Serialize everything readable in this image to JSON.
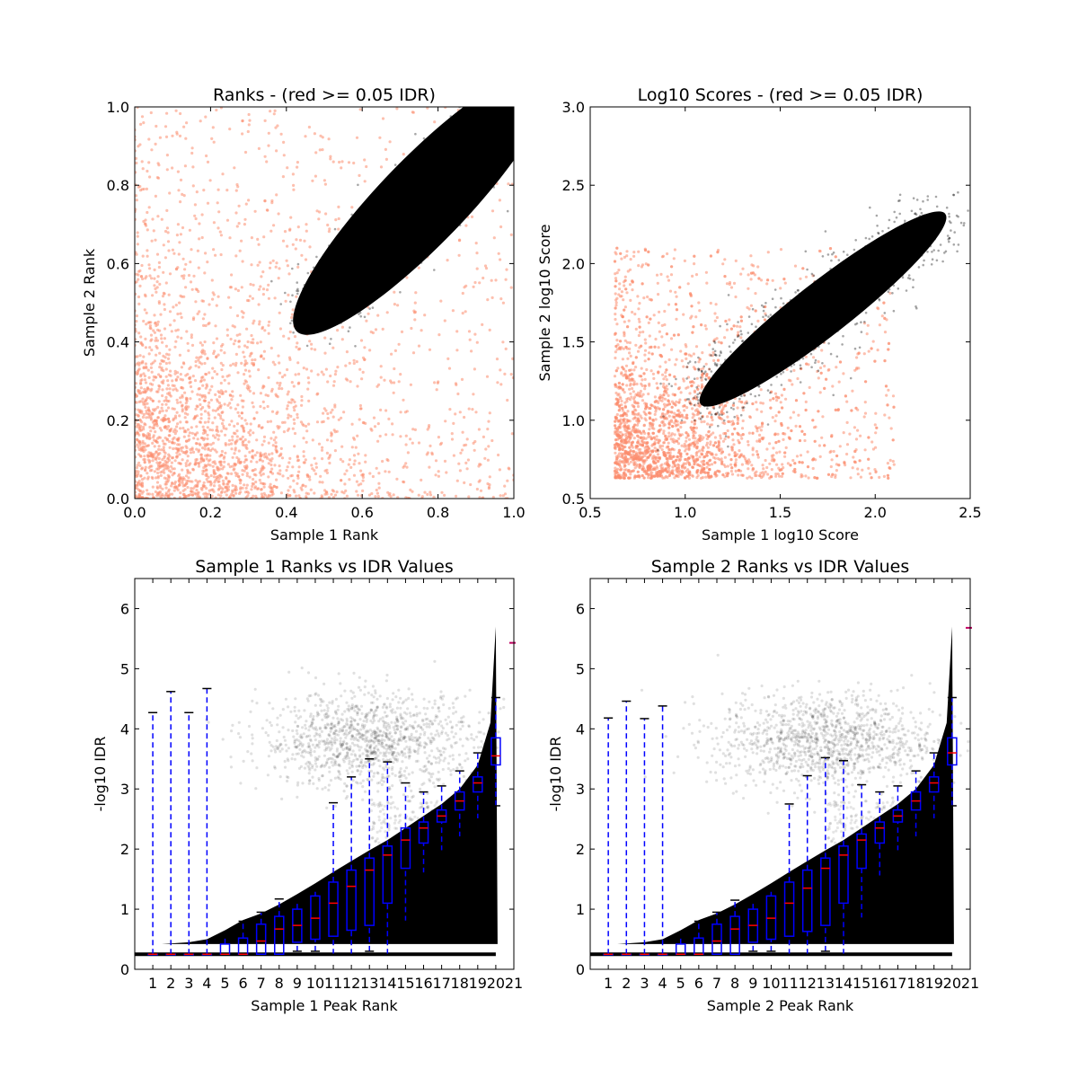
{
  "chart_data": [
    {
      "type": "scatter",
      "title": "Ranks - (red >= 0.05 IDR)",
      "xlabel": "Sample 1 Rank",
      "ylabel": "Sample 2 Rank",
      "xlim": [
        0,
        1
      ],
      "ylim": [
        0,
        1
      ],
      "xticks": [
        "0.0",
        "0.2",
        "0.4",
        "0.6",
        "0.8",
        "1.0"
      ],
      "yticks": [
        "0.0",
        "0.2",
        "0.4",
        "0.6",
        "0.8",
        "1.0"
      ],
      "series": [
        {
          "name": "IDR >= 0.05",
          "color": "#fc8d6e"
        },
        {
          "name": "IDR < 0.05",
          "color": "#000000",
          "dense_region": {
            "from": [
              0.47,
              0.47
            ],
            "to": [
              1.0,
              1.0
            ]
          }
        }
      ]
    },
    {
      "type": "scatter",
      "title": "Log10 Scores - (red >= 0.05 IDR)",
      "xlabel": "Sample 1 log10 Score",
      "ylabel": "Sample 2 log10 Score",
      "xlim": [
        0.5,
        2.5
      ],
      "ylim": [
        0.5,
        3.0
      ],
      "xticks": [
        "0.5",
        "1.0",
        "1.5",
        "2.0",
        "2.5"
      ],
      "yticks": [
        "0.5",
        "1.0",
        "1.5",
        "2.0",
        "2.5",
        "3.0"
      ],
      "series": [
        {
          "name": "IDR >= 0.05",
          "color": "#fc8d6e"
        },
        {
          "name": "IDR < 0.05",
          "color": "#000000",
          "dense_region": {
            "from": [
              1.1,
              1.12
            ],
            "to": [
              2.35,
              2.3
            ]
          }
        }
      ]
    },
    {
      "type": "box",
      "title": "Sample 1 Ranks vs IDR Values",
      "xlabel": "Sample 1 Peak Rank",
      "ylabel": "-log10 IDR",
      "xlim": [
        0,
        21
      ],
      "ylim": [
        0,
        6.5
      ],
      "yticks": [
        "0",
        "1",
        "2",
        "3",
        "4",
        "5",
        "6"
      ],
      "xticks": [
        "1",
        "2",
        "3",
        "4",
        "5",
        "6",
        "7",
        "8",
        "9",
        "10",
        "11",
        "12",
        "13",
        "14",
        "15",
        "16",
        "17",
        "18",
        "19",
        "20",
        "21"
      ],
      "boxes": [
        [
          0.25,
          0.25,
          0.25,
          0.25,
          4.27
        ],
        [
          0.25,
          0.25,
          0.25,
          0.25,
          4.62
        ],
        [
          0.25,
          0.25,
          0.25,
          0.25,
          4.27
        ],
        [
          0.25,
          0.25,
          0.25,
          0.25,
          4.67
        ],
        [
          0.25,
          0.25,
          0.25,
          0.42,
          0.58
        ],
        [
          0.25,
          0.25,
          0.25,
          0.52,
          0.8
        ],
        [
          0.25,
          0.25,
          0.47,
          0.75,
          0.95
        ],
        [
          0.25,
          0.25,
          0.67,
          0.88,
          1.17
        ],
        [
          0.3,
          0.45,
          0.73,
          1.0,
          1.15
        ],
        [
          0.3,
          0.5,
          0.85,
          1.22,
          1.3
        ],
        [
          0.25,
          0.55,
          1.1,
          1.45,
          2.77
        ],
        [
          0.25,
          0.65,
          1.38,
          1.65,
          3.2
        ],
        [
          0.3,
          0.73,
          1.65,
          1.85,
          3.5
        ],
        [
          0.25,
          1.1,
          1.9,
          2.05,
          3.45
        ],
        [
          0.8,
          1.68,
          2.15,
          2.35,
          3.1
        ],
        [
          1.6,
          2.1,
          2.35,
          2.45,
          2.95
        ],
        [
          1.97,
          2.45,
          2.55,
          2.65,
          3.05
        ],
        [
          2.2,
          2.65,
          2.8,
          2.95,
          3.3
        ],
        [
          2.5,
          2.95,
          3.1,
          3.2,
          3.6
        ],
        [
          2.72,
          3.4,
          3.55,
          3.85,
          4.52
        ]
      ],
      "flier": [
        21,
        5.43
      ]
    },
    {
      "type": "box",
      "title": "Sample 2 Ranks vs IDR Values",
      "xlabel": "Sample 2 Peak Rank",
      "ylabel": "-log10 IDR",
      "xlim": [
        0,
        21
      ],
      "ylim": [
        0,
        6.5
      ],
      "yticks": [
        "0",
        "1",
        "2",
        "3",
        "4",
        "5",
        "6"
      ],
      "xticks": [
        "1",
        "2",
        "3",
        "4",
        "5",
        "6",
        "7",
        "8",
        "9",
        "10",
        "11",
        "12",
        "13",
        "14",
        "15",
        "16",
        "17",
        "18",
        "19",
        "20",
        "21"
      ],
      "boxes": [
        [
          0.25,
          0.25,
          0.25,
          0.25,
          4.18
        ],
        [
          0.25,
          0.25,
          0.25,
          0.25,
          4.46
        ],
        [
          0.25,
          0.25,
          0.25,
          0.25,
          4.17
        ],
        [
          0.25,
          0.25,
          0.25,
          0.25,
          4.38
        ],
        [
          0.25,
          0.25,
          0.25,
          0.42,
          0.58
        ],
        [
          0.25,
          0.25,
          0.25,
          0.52,
          0.8
        ],
        [
          0.25,
          0.25,
          0.47,
          0.75,
          0.95
        ],
        [
          0.25,
          0.25,
          0.67,
          0.88,
          1.15
        ],
        [
          0.3,
          0.45,
          0.73,
          1.0,
          1.15
        ],
        [
          0.3,
          0.5,
          0.85,
          1.22,
          1.3
        ],
        [
          0.25,
          0.55,
          1.1,
          1.45,
          2.75
        ],
        [
          0.25,
          0.63,
          1.35,
          1.65,
          3.22
        ],
        [
          0.3,
          0.73,
          1.68,
          1.85,
          3.52
        ],
        [
          0.25,
          1.1,
          1.9,
          2.05,
          3.47
        ],
        [
          0.85,
          1.68,
          2.15,
          2.25,
          3.07
        ],
        [
          1.55,
          2.1,
          2.35,
          2.45,
          2.95
        ],
        [
          1.97,
          2.45,
          2.55,
          2.65,
          3.05
        ],
        [
          2.2,
          2.65,
          2.8,
          2.95,
          3.3
        ],
        [
          2.5,
          2.95,
          3.1,
          3.2,
          3.6
        ],
        [
          2.72,
          3.4,
          3.6,
          3.85,
          4.52
        ]
      ],
      "flier": [
        21,
        5.68
      ]
    }
  ]
}
